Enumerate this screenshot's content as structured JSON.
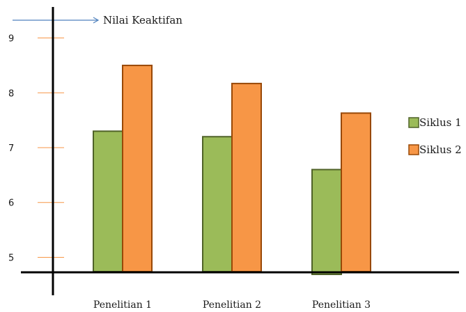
{
  "chart_data": {
    "type": "bar",
    "title": "",
    "xlabel": "",
    "ylabel": "Nilai Keaktifan",
    "categories": [
      "Penelitian 1",
      "Penelitian 2",
      "Penelitian 3"
    ],
    "series": [
      {
        "name": "Siklus 1",
        "values": [
          7.3,
          7.2,
          6.6
        ],
        "color": "#9bbb59",
        "border": "#4f6228"
      },
      {
        "name": "Siklus 2",
        "values": [
          8.5,
          8.17,
          7.63
        ],
        "color": "#f79646",
        "border": "#984807"
      }
    ],
    "y_ticks": [
      5,
      6,
      7,
      8,
      9
    ],
    "ylim": [
      4.65,
      9.35
    ],
    "grid": false,
    "legend_position": "right",
    "axis_color": "#000000",
    "tick_color": "#f79646",
    "arrow_color": "#4f81bd"
  }
}
